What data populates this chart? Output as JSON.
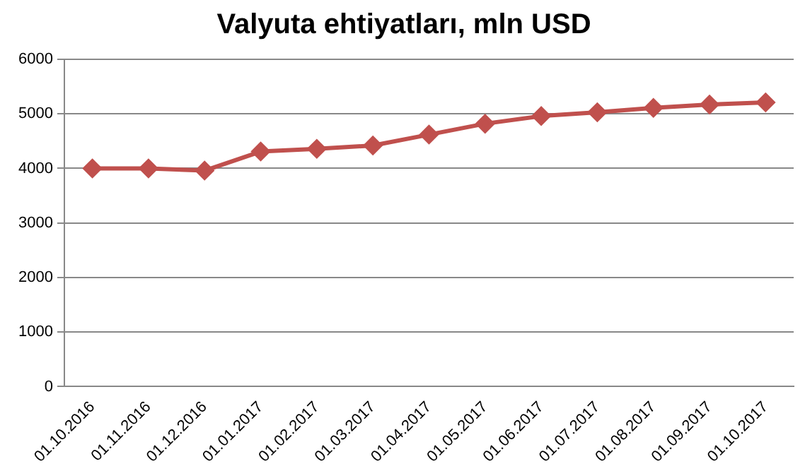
{
  "chart_data": {
    "type": "line",
    "title": "Valyuta ehtiyatları, mln USD",
    "categories": [
      "01.10.2016",
      "01.11.2016",
      "01.12.2016",
      "01.01.2017",
      "01.02.2017",
      "01.03.2017",
      "01.04.2017",
      "01.05.2017",
      "01.06.2017",
      "01.07.2017",
      "01.08.2017",
      "01.09.2017",
      "01.10.2017"
    ],
    "series": [
      {
        "color": "#c0504d",
        "values": [
          4000,
          4000,
          3960,
          4310,
          4360,
          4420,
          4620,
          4820,
          4960,
          5030,
          5110,
          5170,
          5210
        ]
      }
    ],
    "ylim": [
      0,
      6000
    ],
    "yticks": [
      0,
      1000,
      2000,
      3000,
      4000,
      5000,
      6000
    ],
    "grid": "y",
    "legend": false,
    "marker": "diamond",
    "line_style": "solid"
  }
}
